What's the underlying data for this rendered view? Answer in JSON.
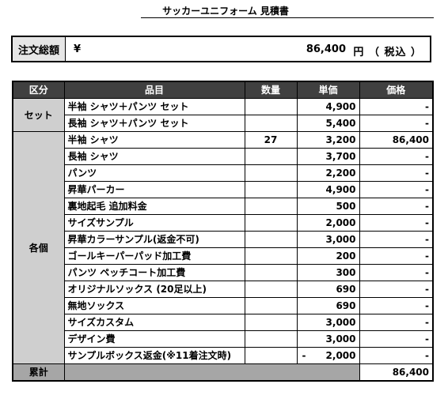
{
  "title": "サッカーユニフォーム 見積書",
  "summary": {
    "label": "注文総額",
    "currency_symbol": "¥",
    "amount": "86,400",
    "unit": "円 （ 税込 ）"
  },
  "table": {
    "headers": [
      "区分",
      "品目",
      "数量",
      "単価",
      "価格"
    ],
    "groups": [
      {
        "category": "セット",
        "rows": [
          {
            "item": "半袖 シャツ＋パンツ セット",
            "qty": "",
            "price": "4,900",
            "amount": "-"
          },
          {
            "item": "長袖 シャツ＋パンツ セット",
            "qty": "",
            "price": "5,400",
            "amount": "-"
          }
        ]
      },
      {
        "category": "各個",
        "rows": [
          {
            "item": "半袖 シャツ",
            "qty": "27",
            "price": "3,200",
            "amount": "86,400"
          },
          {
            "item": "長袖 シャツ",
            "qty": "",
            "price": "3,700",
            "amount": "-"
          },
          {
            "item": "パンツ",
            "qty": "",
            "price": "2,200",
            "amount": "-"
          },
          {
            "item": "昇華パーカー",
            "qty": "",
            "price": "4,900",
            "amount": "-"
          },
          {
            "item": "裏地起毛 追加料金",
            "qty": "",
            "price": "500",
            "amount": "-"
          },
          {
            "item": "サイズサンプル",
            "qty": "",
            "price": "2,000",
            "amount": "-"
          },
          {
            "item": "昇華カラーサンプル(返金不可)",
            "qty": "",
            "price": "3,000",
            "amount": "-"
          },
          {
            "item": "ゴールキーパーパッド加工費",
            "qty": "",
            "price": "200",
            "amount": "-"
          },
          {
            "item": "パンツ ペッチコート加工費",
            "qty": "",
            "price": "300",
            "amount": "-"
          },
          {
            "item": "オリジナルソックス (20足以上)",
            "qty": "",
            "price": "690",
            "amount": "-"
          },
          {
            "item": "無地ソックス",
            "qty": "",
            "price": "690",
            "amount": "-"
          },
          {
            "item": "サイズカスタム",
            "qty": "",
            "price": "3,000",
            "amount": "-"
          },
          {
            "item": "デザイン費",
            "qty": "",
            "price": "3,000",
            "amount": "-"
          },
          {
            "item": "サンプルボックス返金(※11着注文時)",
            "qty": "",
            "price": "2,000",
            "price_sign": "-",
            "amount": "-"
          }
        ]
      }
    ],
    "total": {
      "label": "累計",
      "amount": "86,400"
    }
  }
}
